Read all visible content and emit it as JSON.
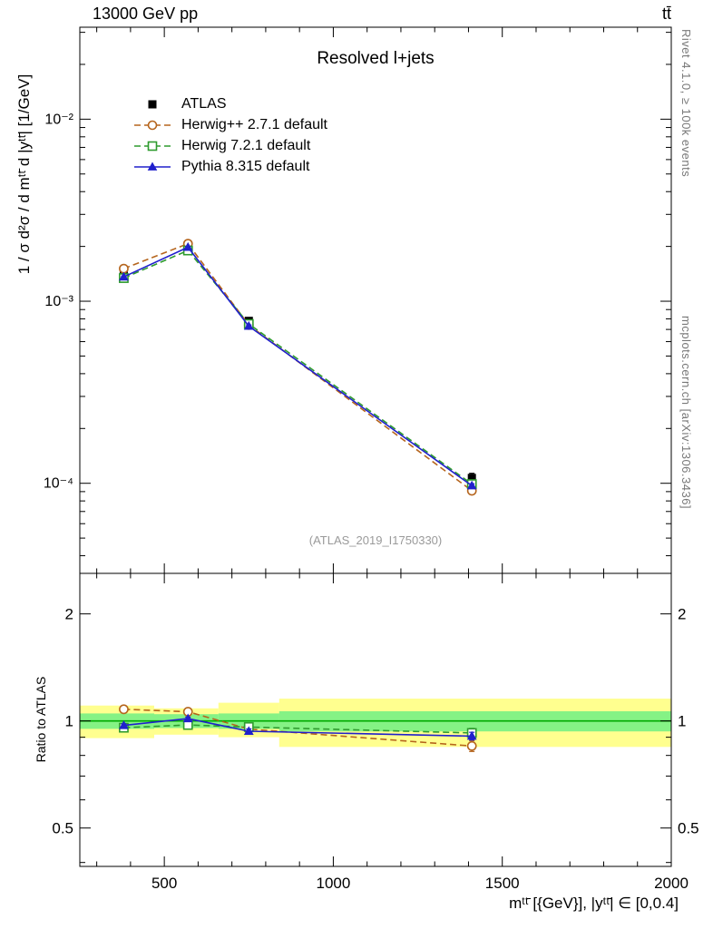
{
  "header": {
    "left": "13000 GeV pp",
    "right": "tt̄"
  },
  "panel_title": "Resolved l+jets",
  "watermark": "(ATLAS_2019_I1750330)",
  "side_notes": {
    "top": "Rivet 4.1.0, ≥ 100k events",
    "bottom": "mcplots.cern.ch [arXiv:1306.3436]"
  },
  "chart_data": {
    "type": "line",
    "title": "Resolved l+jets",
    "xlabel": "mᵗᵗ̄ [{GeV}], |yᵗᵗ̄| ∈ [0,0.4]",
    "ylabel": "1 / σ d²σ / d mᵗᵗ̄ d |yᵗᵗ̄| [1/GeV]",
    "ratio_ylabel": "Ratio to ATLAS",
    "xlim": [
      250,
      2000
    ],
    "ylim": [
      3.2e-05,
      0.032
    ],
    "yscale": "log",
    "x": [
      380,
      570,
      750,
      1410
    ],
    "xticks": [
      500,
      1000,
      1500,
      2000
    ],
    "x_minor_step": 100,
    "yticks": [
      {
        "v": 0.01,
        "label": "10⁻²"
      },
      {
        "v": 0.001,
        "label": "10⁻³"
      },
      {
        "v": 0.0001,
        "label": "10⁻⁴"
      }
    ],
    "series": [
      {
        "name": "ATLAS",
        "role": "data",
        "color": "#000000",
        "marker": "square-filled",
        "values": [
          0.0014,
          0.00195,
          0.00078,
          0.000107
        ],
        "err_frac": [
          0.03,
          0.03,
          0.035,
          0.06
        ]
      },
      {
        "name": "Herwig++ 2.7.1 default",
        "role": "mc",
        "color": "#b5651d",
        "dash": "7 4",
        "marker": "circle-open",
        "values": [
          0.00151,
          0.00207,
          0.00074,
          9.1e-05
        ],
        "err_frac": [
          0.015,
          0.012,
          0.02,
          0.035
        ]
      },
      {
        "name": "Herwig 7.2.1 default",
        "role": "mc",
        "color": "#2e9b2e",
        "dash": "7 4",
        "marker": "square-open",
        "values": [
          0.00134,
          0.0019,
          0.00075,
          9.9e-05
        ],
        "err_frac": [
          0.015,
          0.012,
          0.02,
          0.03
        ]
      },
      {
        "name": "Pythia 8.315 default",
        "role": "mc",
        "color": "#2020cc",
        "dash": "",
        "marker": "triangle-filled",
        "values": [
          0.00136,
          0.00198,
          0.00073,
          9.7e-05
        ],
        "err_frac": [
          0.01,
          0.01,
          0.015,
          0.025
        ]
      }
    ],
    "ratio": {
      "ylim": [
        0.39,
        2.6
      ],
      "yscale": "log",
      "yticks": [
        {
          "v": 0.5,
          "label": "0.5"
        },
        {
          "v": 1,
          "label": "1"
        },
        {
          "v": 2,
          "label": "2"
        }
      ],
      "yticks_minor": [
        0.4,
        0.6,
        0.7,
        0.8,
        0.9
      ],
      "reference_line": 1,
      "line_color": "#00aa00",
      "bands": {
        "edges": [
          250,
          470,
          660,
          840,
          2000
        ],
        "yellow_color": "#ffff8f",
        "green_color": "#85f285",
        "yellow": [
          [
            0.895,
            1.105
          ],
          [
            0.915,
            1.085
          ],
          [
            0.9,
            1.125
          ],
          [
            0.845,
            1.155
          ]
        ],
        "green": [
          [
            0.95,
            1.05
          ],
          [
            0.955,
            1.045
          ],
          [
            0.95,
            1.05
          ],
          [
            0.935,
            1.065
          ]
        ]
      }
    }
  }
}
